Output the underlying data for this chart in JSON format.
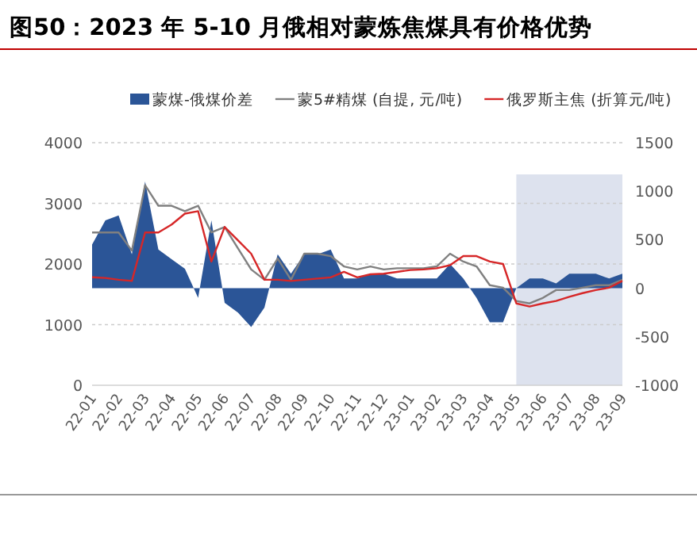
{
  "chart_data": {
    "type": "line",
    "title": "图50：2023 年 5-10 月俄相对蒙炼焦煤具有价格优势",
    "categories": [
      "22-01",
      null,
      "22-02",
      null,
      "22-03",
      null,
      "22-04",
      null,
      "22-05",
      null,
      "22-06",
      null,
      "22-07",
      null,
      "22-08",
      null,
      "22-09",
      null,
      "22-10",
      null,
      "22-11",
      null,
      "22-12",
      null,
      "23-01",
      null,
      "23-02",
      null,
      "23-03",
      null,
      "23-04",
      null,
      "23-05",
      null,
      "23-06",
      null,
      "23-07",
      null,
      "23-08",
      null,
      "23-09"
    ],
    "series": [
      {
        "name": "蒙煤-俄煤价差",
        "type": "area",
        "axis": "y2",
        "color": "#2b5597",
        "values": [
          450,
          700,
          750,
          350,
          1100,
          400,
          300,
          200,
          -100,
          700,
          -150,
          -250,
          -400,
          -200,
          350,
          150,
          350,
          350,
          400,
          100,
          100,
          150,
          150,
          100,
          100,
          100,
          100,
          250,
          100,
          -100,
          -350,
          -350,
          0,
          100,
          100,
          50,
          150,
          150,
          150,
          100,
          150
        ]
      },
      {
        "name": "蒙5#精煤 (自提, 元/吨)",
        "color": "#808080",
        "values": [
          2520,
          2520,
          2520,
          2220,
          3300,
          2960,
          2960,
          2870,
          2960,
          2520,
          2610,
          2260,
          1910,
          1740,
          2090,
          1740,
          2170,
          2170,
          2130,
          1960,
          1910,
          1960,
          1910,
          1930,
          1930,
          1930,
          1960,
          2170,
          2040,
          1960,
          1650,
          1610,
          1390,
          1350,
          1440,
          1570,
          1570,
          1610,
          1650,
          1650,
          1740
        ]
      },
      {
        "name": "俄罗斯主焦 (折算元/吨)",
        "color": "#d62728",
        "values": [
          1780,
          1770,
          1740,
          1720,
          2520,
          2520,
          2650,
          2830,
          2870,
          2040,
          2610,
          2390,
          2170,
          1740,
          1740,
          1720,
          1740,
          1760,
          1780,
          1870,
          1780,
          1830,
          1840,
          1870,
          1900,
          1910,
          1930,
          1980,
          2130,
          2130,
          2040,
          2000,
          1350,
          1300,
          1350,
          1390,
          1460,
          1520,
          1570,
          1610,
          1720
        ]
      }
    ],
    "ylim": [
      0,
      4000
    ],
    "yticks": [
      0,
      1000,
      2000,
      3000,
      4000
    ],
    "y2lim": [
      -1000,
      1500
    ],
    "y2ticks": [
      -1000,
      -500,
      0,
      500,
      1000,
      1500
    ],
    "bands": [
      {
        "axis": "x",
        "from": "23-05",
        "to": "23-09",
        "color": "#dde2ee"
      }
    ],
    "grid": "y",
    "legend": "top"
  }
}
